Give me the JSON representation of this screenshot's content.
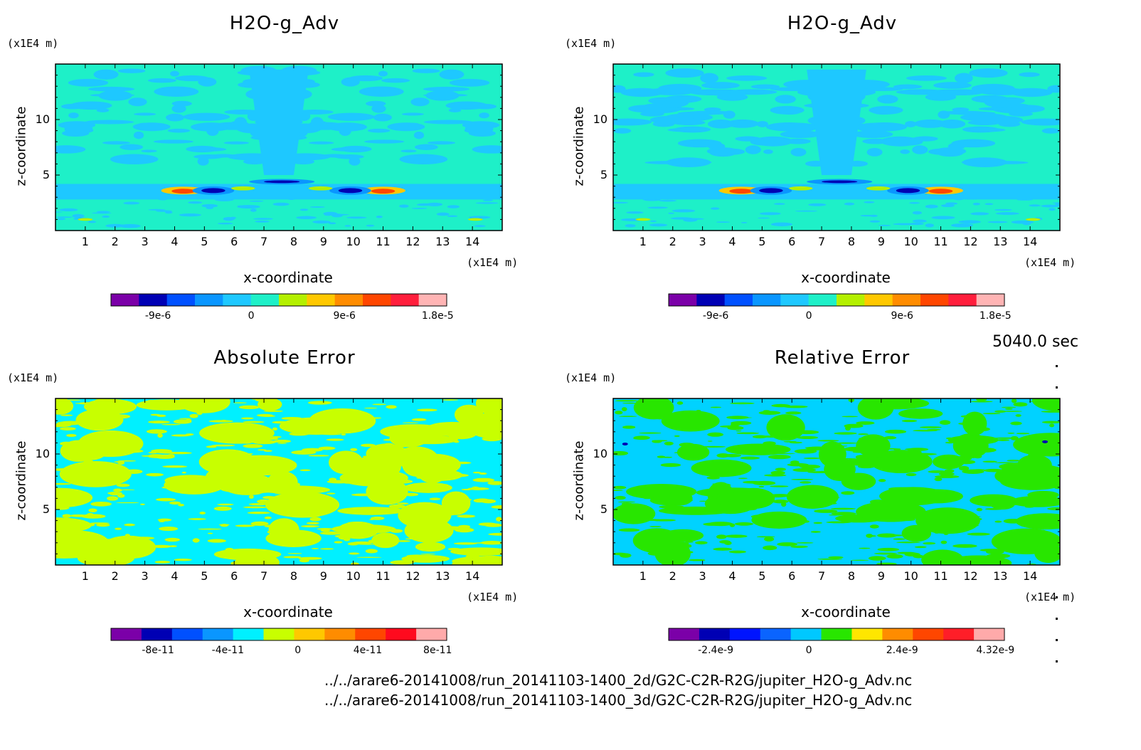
{
  "timestamp": "5040.0 sec",
  "files": [
    "../../arare6-20141008/run_20141103-1400_2d/G2C-C2R-R2G/jupiter_H2O-g_Adv.nc",
    "../../arare6-20141008/run_20141103-1400_3d/G2C-C2R-R2G/jupiter_H2O-g_Adv.nc"
  ],
  "chart_data": [
    {
      "type": "heatmap",
      "title": "H2O-g_Adv",
      "xlabel": "x-coordinate",
      "ylabel": "z-coordinate",
      "x_unit": "(x1E4 m)",
      "y_unit": "(x1E4 m)",
      "xlim": [
        0,
        15
      ],
      "ylim": [
        0,
        15
      ],
      "xticks": [
        "1",
        "2",
        "3",
        "4",
        "5",
        "6",
        "7",
        "8",
        "9",
        "10",
        "11",
        "12",
        "13",
        "14"
      ],
      "yticks": [
        "5",
        "10"
      ],
      "colorbar_colors": [
        "#7b00a8",
        "#0000b4",
        "#0050ff",
        "#0a96ff",
        "#1ec8ff",
        "#1ef0c8",
        "#b4f000",
        "#ffc800",
        "#ff8c00",
        "#ff4600",
        "#ff1e3c",
        "#ffb4b4"
      ],
      "colorbar_labels": [
        "-9e-6",
        "0",
        "9e-6",
        "1.8e-5"
      ],
      "background": "#1ef0c8",
      "features": "light-blue negative bands aloft; red/yellow positive and dark-blue negative cores near z=3.5"
    },
    {
      "type": "heatmap",
      "title": "H2O-g_Adv",
      "xlabel": "x-coordinate",
      "ylabel": "z-coordinate",
      "x_unit": "(x1E4 m)",
      "y_unit": "(x1E4 m)",
      "xlim": [
        0,
        15
      ],
      "ylim": [
        0,
        15
      ],
      "xticks": [
        "1",
        "2",
        "3",
        "4",
        "5",
        "6",
        "7",
        "8",
        "9",
        "10",
        "11",
        "12",
        "13",
        "14"
      ],
      "yticks": [
        "5",
        "10"
      ],
      "colorbar_colors": [
        "#7b00a8",
        "#0000b4",
        "#0050ff",
        "#0a96ff",
        "#1ec8ff",
        "#1ef0c8",
        "#b4f000",
        "#ffc800",
        "#ff8c00",
        "#ff4600",
        "#ff1e3c",
        "#ffb4b4"
      ],
      "colorbar_labels": [
        "-9e-6",
        "0",
        "9e-6",
        "1.8e-5"
      ],
      "background": "#1ef0c8",
      "features": "identical to 2d field"
    },
    {
      "type": "heatmap",
      "title": "Absolute Error",
      "xlabel": "x-coordinate",
      "ylabel": "z-coordinate",
      "x_unit": "(x1E4 m)",
      "y_unit": "(x1E4 m)",
      "xlim": [
        0,
        15
      ],
      "ylim": [
        0,
        15
      ],
      "xticks": [
        "1",
        "2",
        "3",
        "4",
        "5",
        "6",
        "7",
        "8",
        "9",
        "10",
        "11",
        "12",
        "13",
        "14"
      ],
      "yticks": [
        "5",
        "10"
      ],
      "colorbar_colors": [
        "#7b00a8",
        "#0000b4",
        "#0050ff",
        "#0a96ff",
        "#00f0ff",
        "#c8ff00",
        "#ffc800",
        "#ff8c00",
        "#ff4600",
        "#ff0a1e",
        "#ffaaaa"
      ],
      "colorbar_labels": [
        "-8e-11",
        "-4e-11",
        "0",
        "4e-11",
        "8e-11"
      ],
      "background": "#00f0ff",
      "features": "mix of cyan (slightly negative) and yellow-green (slightly positive)"
    },
    {
      "type": "heatmap",
      "title": "Relative Error",
      "xlabel": "x-coordinate",
      "ylabel": "z-coordinate",
      "x_unit": "(x1E4 m)",
      "y_unit": "(x1E4 m)",
      "xlim": [
        0,
        15
      ],
      "ylim": [
        0,
        15
      ],
      "xticks": [
        "1",
        "2",
        "3",
        "4",
        "5",
        "6",
        "7",
        "8",
        "9",
        "10",
        "11",
        "12",
        "13",
        "14"
      ],
      "yticks": [
        "5",
        "10"
      ],
      "colorbar_colors": [
        "#7b00a8",
        "#0000b4",
        "#0014ff",
        "#0a64ff",
        "#00c8ff",
        "#28e600",
        "#ffe600",
        "#ff8c00",
        "#ff4600",
        "#ff1e28",
        "#ffaaaa"
      ],
      "colorbar_labels": [
        "-2.4e-9",
        "0",
        "2.4e-9",
        "4.32e-9"
      ],
      "background": "#00d2ff",
      "features": "mix of light blue and green"
    }
  ]
}
